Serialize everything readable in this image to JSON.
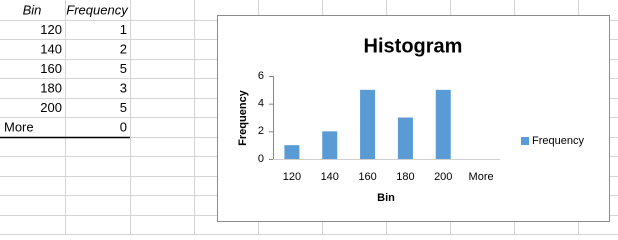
{
  "table": {
    "header": [
      "Bin",
      "Frequency"
    ],
    "rows": [
      [
        120,
        1
      ],
      [
        140,
        2
      ],
      [
        160,
        5
      ],
      [
        180,
        3
      ],
      [
        200,
        5
      ],
      [
        "More",
        0
      ]
    ]
  },
  "chart_data": {
    "type": "bar",
    "title": "Histogram",
    "x_label": "Bin",
    "y_label": "Frequency",
    "categories": [
      "120",
      "140",
      "160",
      "180",
      "200",
      "More"
    ],
    "series": [
      {
        "name": "Frequency",
        "color": "#5b9bd5",
        "values": [
          1,
          2,
          5,
          3,
          5,
          0
        ]
      }
    ],
    "ylim": [
      0,
      6
    ],
    "yticks": [
      0,
      2,
      4,
      6
    ],
    "grid": false,
    "legend": "right"
  }
}
